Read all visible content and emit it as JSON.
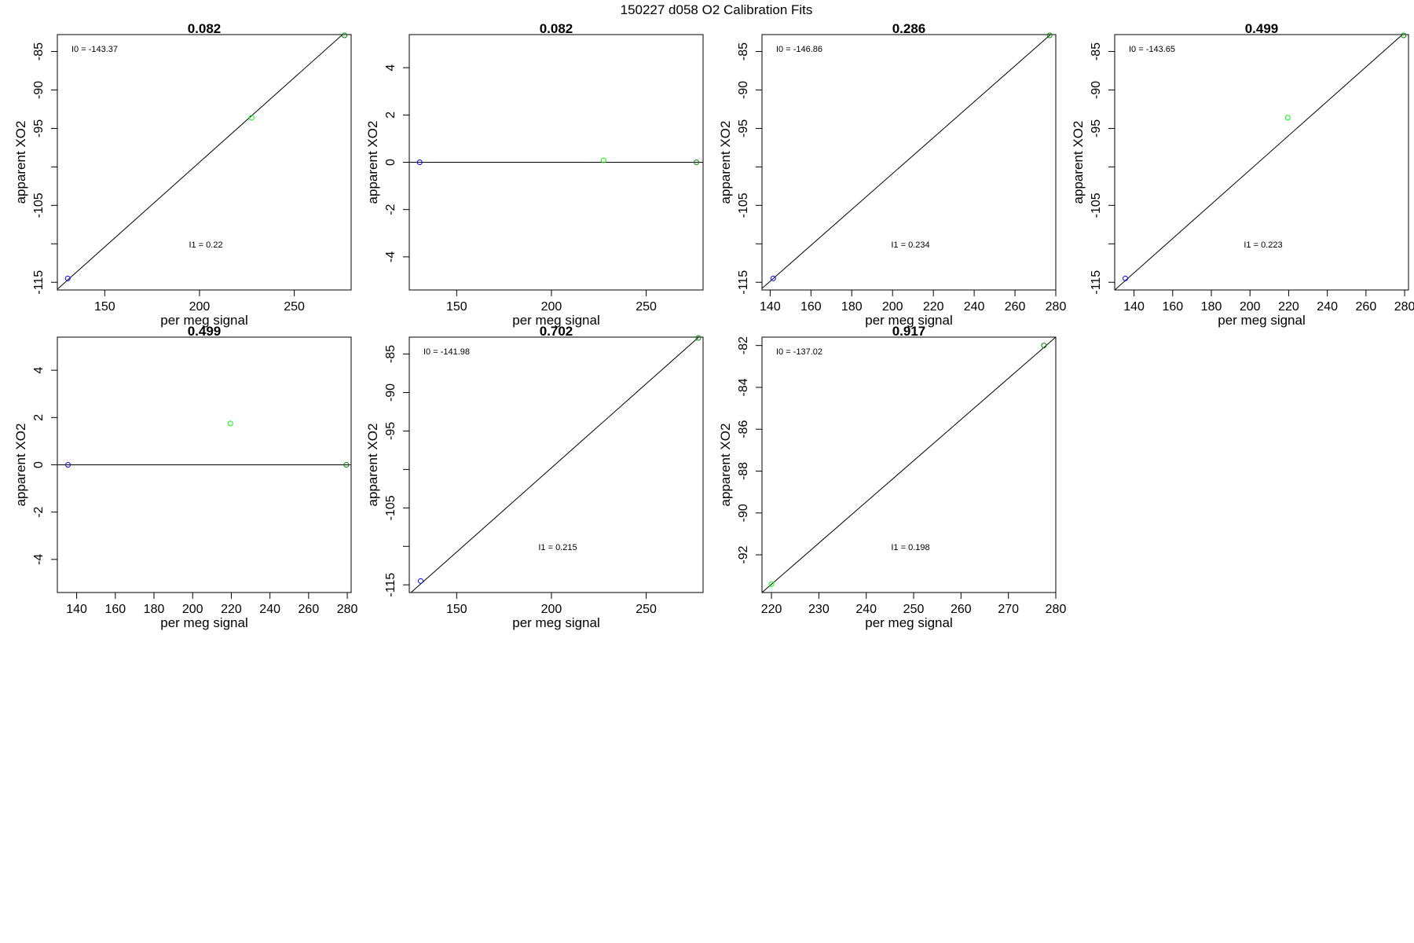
{
  "figure": {
    "title": "150227   d058   O2 Calibration Fits"
  },
  "colors": {
    "point_low": "#0000ff",
    "point_mid": "#00ff00",
    "point_high": "#008800",
    "fit_line": "#000000"
  },
  "chart_data": [
    {
      "type": "scatter",
      "title": "0.082",
      "xlabel": "per meg signal",
      "ylabel": "apparent XO2",
      "xlim": [
        125,
        280
      ],
      "ylim": [
        -116,
        -82.8
      ],
      "xticks": [
        150,
        200,
        250
      ],
      "yticks": [
        -115,
        -110,
        -105,
        -100,
        -95,
        -90,
        -85
      ],
      "yticklabels": [
        "-115",
        "",
        "-105",
        "",
        "-95",
        "-90",
        "-85"
      ],
      "points": [
        {
          "x": 130.5,
          "y": -114.5,
          "color": "#0000ff"
        },
        {
          "x": 227.5,
          "y": -93.6,
          "color": "#00ff00"
        },
        {
          "x": 276.5,
          "y": -82.9,
          "color": "#008800"
        }
      ],
      "fit_line": {
        "x1": 125,
        "y1": -115.9,
        "x2": 280,
        "y2": -81.8
      },
      "annotations": [
        "I0 =  -143.37",
        "I1 =  0.22"
      ]
    },
    {
      "type": "scatter",
      "title": "0.082",
      "xlabel": "per meg signal",
      "ylabel": "apparent XO2",
      "xlim": [
        125,
        280
      ],
      "ylim": [
        -5.4,
        5.4
      ],
      "xticks": [
        150,
        200,
        250
      ],
      "yticks": [
        -4,
        -2,
        0,
        2,
        4
      ],
      "yticklabels": [
        "-4",
        "-2",
        "0",
        "2",
        "4"
      ],
      "points": [
        {
          "x": 130.5,
          "y": 0,
          "color": "#0000ff"
        },
        {
          "x": 227.5,
          "y": 0.08,
          "color": "#00ff00"
        },
        {
          "x": 276.5,
          "y": 0,
          "color": "#008800"
        }
      ],
      "fit_line": {
        "x1": 125,
        "y1": 0,
        "x2": 280,
        "y2": 0
      },
      "annotations": []
    },
    {
      "type": "scatter",
      "title": "0.286",
      "xlabel": "per meg signal",
      "ylabel": "apparent XO2",
      "xlim": [
        136,
        280
      ],
      "ylim": [
        -116,
        -82.8
      ],
      "xticks": [
        140,
        160,
        180,
        200,
        220,
        240,
        260,
        280
      ],
      "yticks": [
        -115,
        -110,
        -105,
        -100,
        -95,
        -90,
        -85
      ],
      "yticklabels": [
        "-115",
        "",
        "-105",
        "",
        "-95",
        "-90",
        "-85"
      ],
      "points": [
        {
          "x": 141.5,
          "y": -114.5,
          "color": "#0000ff"
        },
        {
          "x": 277,
          "y": -82.9,
          "color": "#008800"
        }
      ],
      "fit_line": {
        "x1": 136,
        "y1": -115.8,
        "x2": 280,
        "y2": -82.2
      },
      "annotations": [
        "I0 =  -146.86",
        "I1 =  0.234"
      ]
    },
    {
      "type": "scatter",
      "title": "0.499",
      "xlabel": "per meg signal",
      "ylabel": "apparent XO2",
      "xlim": [
        130,
        282
      ],
      "ylim": [
        -116,
        -82.8
      ],
      "xticks": [
        140,
        160,
        180,
        200,
        220,
        240,
        260,
        280
      ],
      "yticks": [
        -115,
        -110,
        -105,
        -100,
        -95,
        -90,
        -85
      ],
      "yticklabels": [
        "-115",
        "",
        "-105",
        "",
        "-95",
        "-90",
        "-85"
      ],
      "points": [
        {
          "x": 135.5,
          "y": -114.5,
          "color": "#0000ff"
        },
        {
          "x": 219.5,
          "y": -93.6,
          "color": "#00ff00"
        },
        {
          "x": 279.5,
          "y": -82.9,
          "color": "#008800"
        }
      ],
      "fit_line": {
        "x1": 130,
        "y1": -116,
        "x2": 282,
        "y2": -82.1
      },
      "annotations": [
        "I0 =  -143.65",
        "I1 =  0.223"
      ]
    },
    {
      "type": "scatter",
      "title": "0.499",
      "xlabel": "per meg signal",
      "ylabel": "apparent XO2",
      "xlim": [
        130,
        282
      ],
      "ylim": [
        -5.4,
        5.4
      ],
      "xticks": [
        140,
        160,
        180,
        200,
        220,
        240,
        260,
        280
      ],
      "yticks": [
        -4,
        -2,
        0,
        2,
        4
      ],
      "yticklabels": [
        "-4",
        "-2",
        "0",
        "2",
        "4"
      ],
      "points": [
        {
          "x": 135.5,
          "y": 0,
          "color": "#0000ff"
        },
        {
          "x": 219.5,
          "y": 1.75,
          "color": "#00ff00"
        },
        {
          "x": 279.5,
          "y": 0,
          "color": "#008800"
        }
      ],
      "fit_line": {
        "x1": 130,
        "y1": 0,
        "x2": 282,
        "y2": 0
      },
      "annotations": []
    },
    {
      "type": "scatter",
      "title": "0.702",
      "xlabel": "per meg signal",
      "ylabel": "apparent XO2",
      "xlim": [
        125,
        280
      ],
      "ylim": [
        -116,
        -82.8
      ],
      "xticks": [
        150,
        200,
        250
      ],
      "yticks": [
        -115,
        -110,
        -105,
        -100,
        -95,
        -90,
        -85
      ],
      "yticklabels": [
        "-115",
        "",
        "-105",
        "",
        "-95",
        "-90",
        "-85"
      ],
      "points": [
        {
          "x": 131,
          "y": -114.5,
          "color": "#0000ff"
        },
        {
          "x": 277.5,
          "y": -82.9,
          "color": "#008800"
        }
      ],
      "fit_line": {
        "x1": 125,
        "y1": -116.2,
        "x2": 280,
        "y2": -82.3
      },
      "annotations": [
        "I0 =  -141.98",
        "I1 =  0.215"
      ]
    },
    {
      "type": "scatter",
      "title": "0.917",
      "xlabel": "per meg signal",
      "ylabel": "apparent XO2",
      "xlim": [
        218,
        280
      ],
      "ylim": [
        -93.8,
        -81.6
      ],
      "xticks": [
        220,
        230,
        240,
        250,
        260,
        270,
        280
      ],
      "yticks": [
        -92,
        -90,
        -88,
        -86,
        -84,
        -82
      ],
      "yticklabels": [
        "-92",
        "-90",
        "-88",
        "-86",
        "-84",
        "-82"
      ],
      "points": [
        {
          "x": 220,
          "y": -93.4,
          "color": "#00ff00"
        },
        {
          "x": 277.5,
          "y": -82,
          "color": "#008800"
        }
      ],
      "fit_line": {
        "x1": 218,
        "y1": -93.8,
        "x2": 280,
        "y2": -81.6
      },
      "annotations": [
        "I0 =  -137.02",
        "I1 =  0.198"
      ]
    }
  ]
}
